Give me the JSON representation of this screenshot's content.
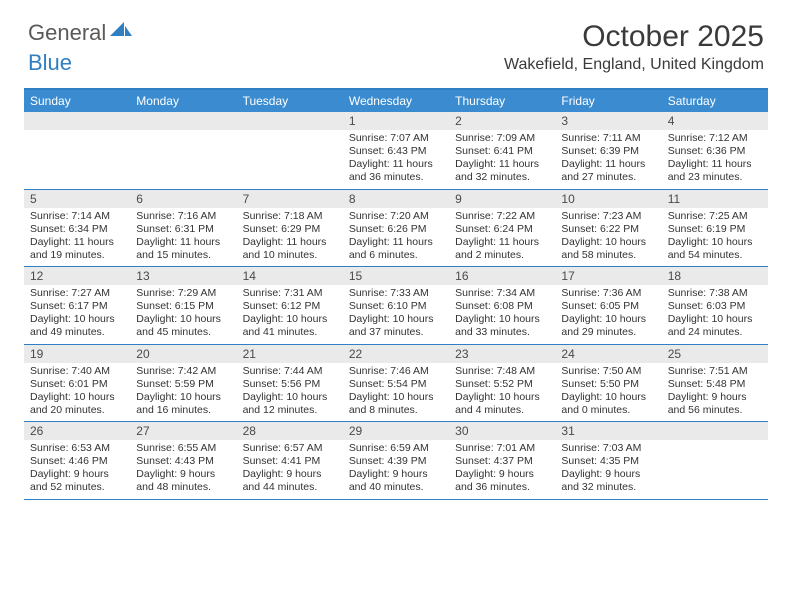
{
  "logo": {
    "text1": "General",
    "text2": "Blue"
  },
  "title": "October 2025",
  "location": "Wakefield, England, United Kingdom",
  "colors": {
    "accent": "#3a8bd0",
    "accent_border": "#2f7fc2",
    "day_bar": "#eaeaea",
    "text": "#333333",
    "logo_gray": "#5a5a5a"
  },
  "weekdays": [
    "Sunday",
    "Monday",
    "Tuesday",
    "Wednesday",
    "Thursday",
    "Friday",
    "Saturday"
  ],
  "weeks": [
    [
      null,
      null,
      null,
      {
        "n": "1",
        "sr": "7:07 AM",
        "ss": "6:43 PM",
        "dl": "11 hours and 36 minutes."
      },
      {
        "n": "2",
        "sr": "7:09 AM",
        "ss": "6:41 PM",
        "dl": "11 hours and 32 minutes."
      },
      {
        "n": "3",
        "sr": "7:11 AM",
        "ss": "6:39 PM",
        "dl": "11 hours and 27 minutes."
      },
      {
        "n": "4",
        "sr": "7:12 AM",
        "ss": "6:36 PM",
        "dl": "11 hours and 23 minutes."
      }
    ],
    [
      {
        "n": "5",
        "sr": "7:14 AM",
        "ss": "6:34 PM",
        "dl": "11 hours and 19 minutes."
      },
      {
        "n": "6",
        "sr": "7:16 AM",
        "ss": "6:31 PM",
        "dl": "11 hours and 15 minutes."
      },
      {
        "n": "7",
        "sr": "7:18 AM",
        "ss": "6:29 PM",
        "dl": "11 hours and 10 minutes."
      },
      {
        "n": "8",
        "sr": "7:20 AM",
        "ss": "6:26 PM",
        "dl": "11 hours and 6 minutes."
      },
      {
        "n": "9",
        "sr": "7:22 AM",
        "ss": "6:24 PM",
        "dl": "11 hours and 2 minutes."
      },
      {
        "n": "10",
        "sr": "7:23 AM",
        "ss": "6:22 PM",
        "dl": "10 hours and 58 minutes."
      },
      {
        "n": "11",
        "sr": "7:25 AM",
        "ss": "6:19 PM",
        "dl": "10 hours and 54 minutes."
      }
    ],
    [
      {
        "n": "12",
        "sr": "7:27 AM",
        "ss": "6:17 PM",
        "dl": "10 hours and 49 minutes."
      },
      {
        "n": "13",
        "sr": "7:29 AM",
        "ss": "6:15 PM",
        "dl": "10 hours and 45 minutes."
      },
      {
        "n": "14",
        "sr": "7:31 AM",
        "ss": "6:12 PM",
        "dl": "10 hours and 41 minutes."
      },
      {
        "n": "15",
        "sr": "7:33 AM",
        "ss": "6:10 PM",
        "dl": "10 hours and 37 minutes."
      },
      {
        "n": "16",
        "sr": "7:34 AM",
        "ss": "6:08 PM",
        "dl": "10 hours and 33 minutes."
      },
      {
        "n": "17",
        "sr": "7:36 AM",
        "ss": "6:05 PM",
        "dl": "10 hours and 29 minutes."
      },
      {
        "n": "18",
        "sr": "7:38 AM",
        "ss": "6:03 PM",
        "dl": "10 hours and 24 minutes."
      }
    ],
    [
      {
        "n": "19",
        "sr": "7:40 AM",
        "ss": "6:01 PM",
        "dl": "10 hours and 20 minutes."
      },
      {
        "n": "20",
        "sr": "7:42 AM",
        "ss": "5:59 PM",
        "dl": "10 hours and 16 minutes."
      },
      {
        "n": "21",
        "sr": "7:44 AM",
        "ss": "5:56 PM",
        "dl": "10 hours and 12 minutes."
      },
      {
        "n": "22",
        "sr": "7:46 AM",
        "ss": "5:54 PM",
        "dl": "10 hours and 8 minutes."
      },
      {
        "n": "23",
        "sr": "7:48 AM",
        "ss": "5:52 PM",
        "dl": "10 hours and 4 minutes."
      },
      {
        "n": "24",
        "sr": "7:50 AM",
        "ss": "5:50 PM",
        "dl": "10 hours and 0 minutes."
      },
      {
        "n": "25",
        "sr": "7:51 AM",
        "ss": "5:48 PM",
        "dl": "9 hours and 56 minutes."
      }
    ],
    [
      {
        "n": "26",
        "sr": "6:53 AM",
        "ss": "4:46 PM",
        "dl": "9 hours and 52 minutes."
      },
      {
        "n": "27",
        "sr": "6:55 AM",
        "ss": "4:43 PM",
        "dl": "9 hours and 48 minutes."
      },
      {
        "n": "28",
        "sr": "6:57 AM",
        "ss": "4:41 PM",
        "dl": "9 hours and 44 minutes."
      },
      {
        "n": "29",
        "sr": "6:59 AM",
        "ss": "4:39 PM",
        "dl": "9 hours and 40 minutes."
      },
      {
        "n": "30",
        "sr": "7:01 AM",
        "ss": "4:37 PM",
        "dl": "9 hours and 36 minutes."
      },
      {
        "n": "31",
        "sr": "7:03 AM",
        "ss": "4:35 PM",
        "dl": "9 hours and 32 minutes."
      },
      null
    ]
  ],
  "labels": {
    "sunrise": "Sunrise: ",
    "sunset": "Sunset: ",
    "daylight": "Daylight: "
  }
}
